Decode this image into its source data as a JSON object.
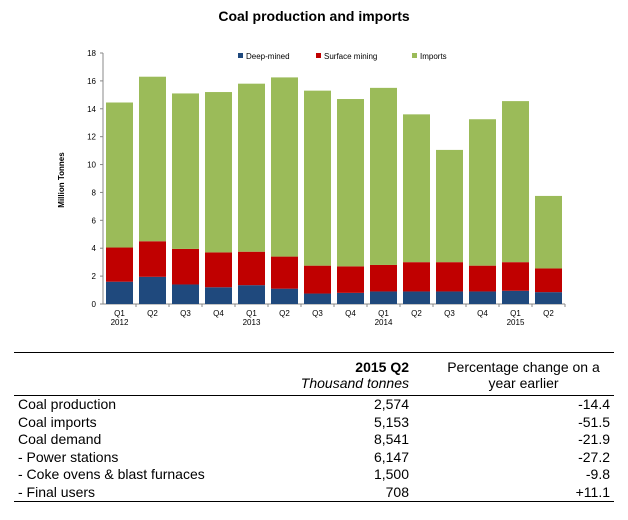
{
  "chart_data": {
    "type": "bar",
    "stacked": true,
    "title": "Coal production and imports",
    "xlabel": "",
    "ylabel": "Million Tonnes",
    "ylim": [
      0,
      18
    ],
    "yticks": [
      0,
      2,
      4,
      6,
      8,
      10,
      12,
      14,
      16,
      18
    ],
    "categories": [
      "Q1 2012",
      "Q2 2012",
      "Q3 2012",
      "Q4 2012",
      "Q1 2013",
      "Q2 2013",
      "Q3 2013",
      "Q4 2013",
      "Q1 2014",
      "Q2 2014",
      "Q3 2014",
      "Q4 2014",
      "Q1 2015",
      "Q2 2015"
    ],
    "tick_labels": [
      [
        "Q1",
        "2012"
      ],
      [
        "Q2",
        ""
      ],
      [
        "Q3",
        ""
      ],
      [
        "Q4",
        ""
      ],
      [
        "Q1",
        "2013"
      ],
      [
        "Q2",
        ""
      ],
      [
        "Q3",
        ""
      ],
      [
        "Q4",
        ""
      ],
      [
        "Q1",
        "2014"
      ],
      [
        "Q2",
        ""
      ],
      [
        "Q3",
        ""
      ],
      [
        "Q4",
        ""
      ],
      [
        "Q1",
        "2015"
      ],
      [
        "Q2",
        ""
      ]
    ],
    "legend_position": "top-right",
    "series": [
      {
        "name": "Deep-mined",
        "color": "#1f497d",
        "values": [
          1.6,
          1.95,
          1.4,
          1.2,
          1.35,
          1.1,
          0.75,
          0.8,
          0.9,
          0.9,
          0.9,
          0.9,
          0.95,
          0.85
        ]
      },
      {
        "name": "Surface mining",
        "color": "#c00000",
        "values": [
          2.45,
          2.55,
          2.55,
          2.5,
          2.4,
          2.3,
          2.0,
          1.9,
          1.9,
          2.1,
          2.1,
          1.85,
          2.05,
          1.7
        ]
      },
      {
        "name": "Imports",
        "color": "#9bbb59",
        "values": [
          10.4,
          11.8,
          11.15,
          11.5,
          12.05,
          12.85,
          12.55,
          12.0,
          12.7,
          10.6,
          8.05,
          10.5,
          11.55,
          5.2
        ]
      }
    ]
  },
  "table": {
    "col2_header": "2015 Q2",
    "col2_sub": "Thousand tonnes",
    "col3_header": "Percentage change on a year earlier",
    "rows": [
      {
        "label": "Coal production",
        "value": "2,574",
        "change": "-14.4"
      },
      {
        "label": "Coal imports",
        "value": "5,153",
        "change": "-51.5"
      },
      {
        "label": "Coal demand",
        "value": "8,541",
        "change": "-21.9"
      },
      {
        "label": "- Power stations",
        "value": "6,147",
        "change": "-27.2"
      },
      {
        "label": "- Coke ovens & blast furnaces",
        "value": "1,500",
        "change": "-9.8"
      },
      {
        "label": "- Final users",
        "value": "708",
        "change": "+11.1"
      }
    ]
  }
}
